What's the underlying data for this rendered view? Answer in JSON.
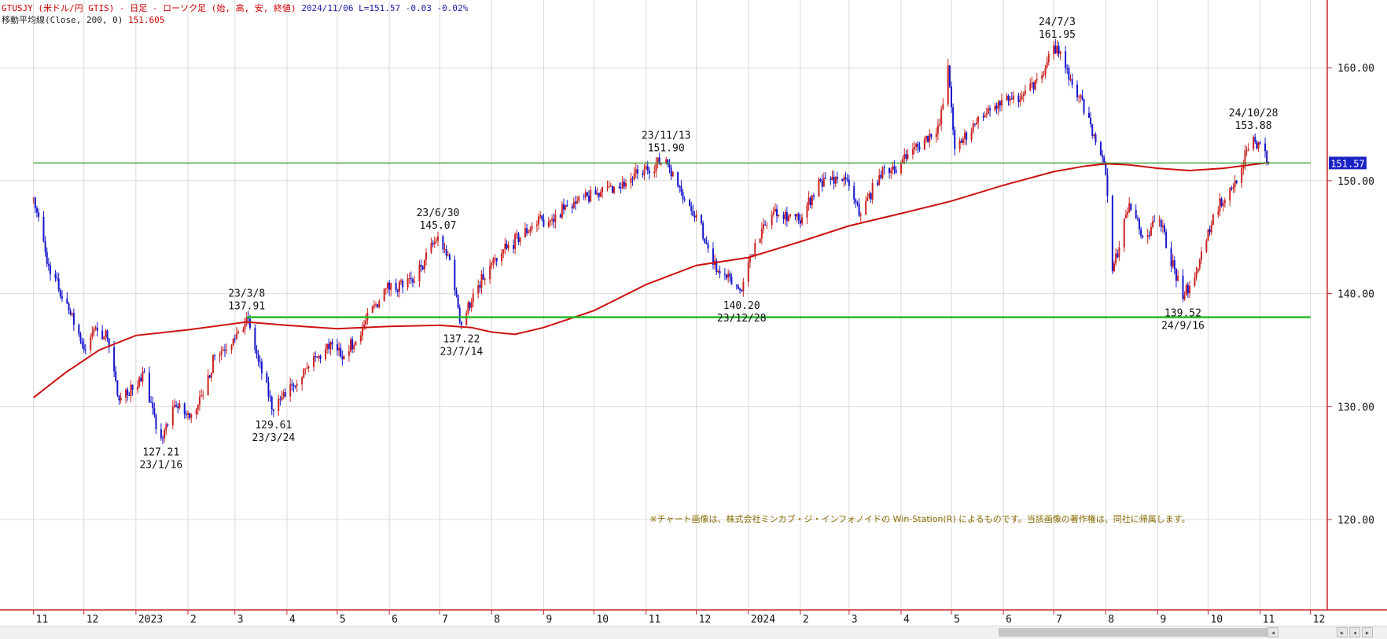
{
  "header": {
    "symbol_line": "GTUSJY (米ドル/円 GTIS) - 日足 - ローソク足 (始, 高, 安, 終値)",
    "date": "2024/11/06",
    "last": "L=151.57",
    "change": "-0.03",
    "change_pct": "-0.02%",
    "ma_label": "移動平均線(Close, 200, 0)",
    "ma_value": "151.605"
  },
  "copyright": "※チャート画像は、株式会社ミンカブ・ジ・インフォノイドの Win-Station(R) によるものです。当該画像の著作権は、同社に帰属します。",
  "scrollbar": {
    "buttons": [
      "◂",
      "▸",
      "◂",
      "▸"
    ]
  },
  "colors": {
    "up": "#cc2222",
    "down": "#1515cc",
    "ma": "#cc1111",
    "level_line": "#2a9a2a",
    "resistance_line": "#22bb22",
    "frame": "#c62828",
    "grid": "#d9d9d9",
    "price_tag_bg": "#1b22c4"
  },
  "chart_data": {
    "type": "candlestick",
    "timeframe": "daily",
    "ylim": [
      112,
      166
    ],
    "y_ticks": [
      "120.00",
      "130.00",
      "140.00",
      "150.00",
      "160.00"
    ],
    "x_ticks": [
      {
        "date": "2022-11",
        "label": "11"
      },
      {
        "date": "2022-12",
        "label": "12"
      },
      {
        "date": "2023-01",
        "label": "2023"
      },
      {
        "date": "2023-02",
        "label": "2"
      },
      {
        "date": "2023-03",
        "label": "3"
      },
      {
        "date": "2023-04",
        "label": "4"
      },
      {
        "date": "2023-05",
        "label": "5"
      },
      {
        "date": "2023-06",
        "label": "6"
      },
      {
        "date": "2023-07",
        "label": "7"
      },
      {
        "date": "2023-08",
        "label": "8"
      },
      {
        "date": "2023-09",
        "label": "9"
      },
      {
        "date": "2023-10",
        "label": "10"
      },
      {
        "date": "2023-11",
        "label": "11"
      },
      {
        "date": "2023-12",
        "label": "12"
      },
      {
        "date": "2024-01",
        "label": "2024"
      },
      {
        "date": "2024-02",
        "label": "2"
      },
      {
        "date": "2024-03",
        "label": "3"
      },
      {
        "date": "2024-04",
        "label": "4"
      },
      {
        "date": "2024-05",
        "label": "5"
      },
      {
        "date": "2024-06",
        "label": "6"
      },
      {
        "date": "2024-07",
        "label": "7"
      },
      {
        "date": "2024-08",
        "label": "8"
      },
      {
        "date": "2024-09",
        "label": "9"
      },
      {
        "date": "2024-10",
        "label": "10"
      },
      {
        "date": "2024-11",
        "label": "11"
      },
      {
        "date": "2024-12",
        "label": "12"
      }
    ],
    "last_price": "151.57",
    "horizontal_lines": [
      {
        "value": 151.57,
        "from": "2022-11",
        "to": "2024-12",
        "color": "#2a9a2a"
      },
      {
        "value": 137.91,
        "from": "2023-03-08",
        "to": "2024-12",
        "color": "#22bb22"
      }
    ],
    "price_path": [
      [
        "2022-11-01",
        148.5
      ],
      [
        "2022-11-10",
        142.5
      ],
      [
        "2022-11-22",
        138.5
      ],
      [
        "2022-12-02",
        135.0
      ],
      [
        "2022-12-08",
        137.0
      ],
      [
        "2022-12-15",
        136.0
      ],
      [
        "2022-12-21",
        131.0
      ],
      [
        "2022-12-30",
        131.5
      ],
      [
        "2023-01-06",
        133.0
      ],
      [
        "2023-01-13",
        128.0
      ],
      [
        "2023-01-16",
        127.21
      ],
      [
        "2023-01-25",
        130.0
      ],
      [
        "2023-02-02",
        129.0
      ],
      [
        "2023-02-10",
        131.0
      ],
      [
        "2023-02-17",
        134.5
      ],
      [
        "2023-02-28",
        136.0
      ],
      [
        "2023-03-08",
        137.91
      ],
      [
        "2023-03-15",
        134.0
      ],
      [
        "2023-03-24",
        129.61
      ],
      [
        "2023-04-03",
        132.0
      ],
      [
        "2023-04-14",
        133.5
      ],
      [
        "2023-04-28",
        135.5
      ],
      [
        "2023-05-05",
        134.5
      ],
      [
        "2023-05-16",
        137.0
      ],
      [
        "2023-05-30",
        140.5
      ],
      [
        "2023-06-15",
        141.0
      ],
      [
        "2023-06-22",
        143.0
      ],
      [
        "2023-06-30",
        145.07
      ],
      [
        "2023-07-07",
        143.0
      ],
      [
        "2023-07-14",
        137.22
      ],
      [
        "2023-07-21",
        140.0
      ],
      [
        "2023-07-31",
        142.5
      ],
      [
        "2023-08-10",
        144.0
      ],
      [
        "2023-08-25",
        146.0
      ],
      [
        "2023-09-08",
        147.0
      ],
      [
        "2023-09-20",
        148.0
      ],
      [
        "2023-10-05",
        149.0
      ],
      [
        "2023-10-20",
        149.8
      ],
      [
        "2023-10-31",
        151.0
      ],
      [
        "2023-11-13",
        151.9
      ],
      [
        "2023-11-22",
        149.0
      ],
      [
        "2023-12-01",
        147.0
      ],
      [
        "2023-12-08",
        144.0
      ],
      [
        "2023-12-14",
        142.0
      ],
      [
        "2023-12-28",
        140.2
      ],
      [
        "2024-01-05",
        144.5
      ],
      [
        "2024-01-17",
        147.5
      ],
      [
        "2024-01-31",
        146.5
      ],
      [
        "2024-02-13",
        150.0
      ],
      [
        "2024-02-27",
        150.3
      ],
      [
        "2024-03-08",
        147.0
      ],
      [
        "2024-03-19",
        150.5
      ],
      [
        "2024-04-01",
        151.5
      ],
      [
        "2024-04-11",
        153.0
      ],
      [
        "2024-04-24",
        155.0
      ],
      [
        "2024-04-29",
        160.2
      ],
      [
        "2024-05-03",
        152.8
      ],
      [
        "2024-05-15",
        155.0
      ],
      [
        "2024-05-29",
        157.0
      ],
      [
        "2024-06-11",
        157.2
      ],
      [
        "2024-06-21",
        159.0
      ],
      [
        "2024-07-03",
        161.95
      ],
      [
        "2024-07-11",
        159.0
      ],
      [
        "2024-07-23",
        155.0
      ],
      [
        "2024-08-01",
        150.5
      ],
      [
        "2024-08-05",
        142.0
      ],
      [
        "2024-08-15",
        148.0
      ],
      [
        "2024-08-23",
        145.0
      ],
      [
        "2024-09-02",
        146.5
      ],
      [
        "2024-09-16",
        139.52
      ],
      [
        "2024-09-26",
        143.0
      ],
      [
        "2024-10-04",
        147.0
      ],
      [
        "2024-10-17",
        150.0
      ],
      [
        "2024-10-28",
        153.88
      ],
      [
        "2024-11-06",
        151.57
      ]
    ],
    "moving_average_200": [
      [
        "2022-11-01",
        130.8
      ],
      [
        "2022-11-20",
        133.0
      ],
      [
        "2022-12-10",
        135.0
      ],
      [
        "2023-01-01",
        136.3
      ],
      [
        "2023-02-01",
        136.8
      ],
      [
        "2023-03-08",
        137.5
      ],
      [
        "2023-04-01",
        137.2
      ],
      [
        "2023-05-01",
        136.9
      ],
      [
        "2023-06-01",
        137.1
      ],
      [
        "2023-07-01",
        137.2
      ],
      [
        "2023-07-20",
        137.0
      ],
      [
        "2023-08-01",
        136.6
      ],
      [
        "2023-08-15",
        136.4
      ],
      [
        "2023-09-01",
        137.0
      ],
      [
        "2023-09-15",
        137.7
      ],
      [
        "2023-10-01",
        138.5
      ],
      [
        "2023-11-01",
        140.8
      ],
      [
        "2023-12-01",
        142.5
      ],
      [
        "2024-01-01",
        143.2
      ],
      [
        "2024-02-01",
        144.6
      ],
      [
        "2024-03-01",
        146.0
      ],
      [
        "2024-04-01",
        147.1
      ],
      [
        "2024-05-01",
        148.2
      ],
      [
        "2024-06-01",
        149.6
      ],
      [
        "2024-07-01",
        150.8
      ],
      [
        "2024-07-20",
        151.3
      ],
      [
        "2024-08-01",
        151.5
      ],
      [
        "2024-08-15",
        151.4
      ],
      [
        "2024-09-01",
        151.1
      ],
      [
        "2024-09-20",
        150.9
      ],
      [
        "2024-10-10",
        151.1
      ],
      [
        "2024-11-06",
        151.605
      ]
    ],
    "annotations": [
      {
        "date": "2023-01-16",
        "price": "127.21",
        "date_label": "23/1/16",
        "position": "below"
      },
      {
        "date": "2023-03-08",
        "price": "137.91",
        "date_label": "23/3/8",
        "position": "above"
      },
      {
        "date": "2023-03-24",
        "price": "129.61",
        "date_label": "23/3/24",
        "position": "below"
      },
      {
        "date": "2023-06-30",
        "price": "145.07",
        "date_label": "23/6/30",
        "position": "above"
      },
      {
        "date": "2023-07-14",
        "price": "137.22",
        "date_label": "23/7/14",
        "position": "below"
      },
      {
        "date": "2023-11-13",
        "price": "151.90",
        "date_label": "23/11/13",
        "position": "above"
      },
      {
        "date": "2023-12-28",
        "price": "140.20",
        "date_label": "23/12/28",
        "position": "below"
      },
      {
        "date": "2024-07-03",
        "price": "161.95",
        "date_label": "24/7/3",
        "position": "above"
      },
      {
        "date": "2024-09-16",
        "price": "139.52",
        "date_label": "24/9/16",
        "position": "below"
      },
      {
        "date": "2024-10-28",
        "price": "153.88",
        "date_label": "24/10/28",
        "position": "above"
      }
    ]
  }
}
